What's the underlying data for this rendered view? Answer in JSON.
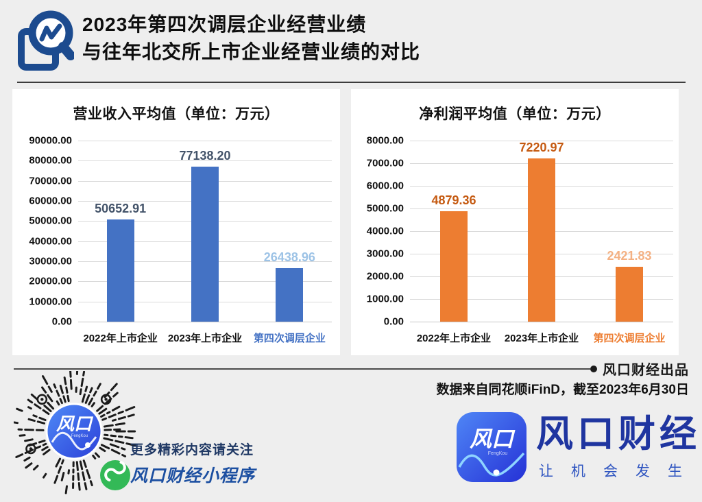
{
  "header": {
    "title_line1": "2023年第四次调层企业经营业绩",
    "title_line2": "与往年北交所上市企业经营业绩的对比",
    "icon": "magnifier-chart-icon",
    "icon_color": "#1c4b8f"
  },
  "chart_data": [
    {
      "type": "bar",
      "title": "营业收入平均值（单位：万元）",
      "categories": [
        "2022年上市企业",
        "2023年上市企业",
        "第四次调层企业"
      ],
      "values": [
        50652.91,
        77138.2,
        26438.96
      ],
      "value_labels": [
        "50652.91",
        "77138.20",
        "26438.96"
      ],
      "ylabel": "",
      "xlabel": "",
      "ylim": [
        0,
        90000
      ],
      "ytick_step": 10000,
      "grid": true,
      "legend": "none",
      "bar_color": "#4472c4",
      "label_colors": [
        "#44546a",
        "#44546a",
        "#9dc3e6"
      ],
      "category_colors": [
        "#111111",
        "#111111",
        "#4472c4"
      ]
    },
    {
      "type": "bar",
      "title": "净利润平均值（单位：万元）",
      "categories": [
        "2022年上市企业",
        "2023年上市企业",
        "第四次调层企业"
      ],
      "values": [
        4879.36,
        7220.97,
        2421.83
      ],
      "value_labels": [
        "4879.36",
        "7220.97",
        "2421.83"
      ],
      "ylabel": "",
      "xlabel": "",
      "ylim": [
        0,
        8000
      ],
      "ytick_step": 1000,
      "grid": true,
      "legend": "none",
      "bar_color": "#ed7d31",
      "label_colors": [
        "#c55a11",
        "#c55a11",
        "#f4b183"
      ],
      "category_colors": [
        "#111111",
        "#111111",
        "#ed7d31"
      ]
    }
  ],
  "footer": {
    "byline": "风口财经出品",
    "source_note": "数据来自同花顺iFinD，截至2023年6月30日"
  },
  "promo": {
    "line1": "更多精彩内容请关注",
    "line2": "风口财经小程序",
    "qr_center_text": "风口",
    "qr_center_subtext": "FengKou",
    "wechat_badge_color": "#33b957"
  },
  "brand": {
    "icon_text": "风口",
    "icon_subtext": "FengKou",
    "name": "风口财经",
    "tagline": "让机会发生"
  }
}
